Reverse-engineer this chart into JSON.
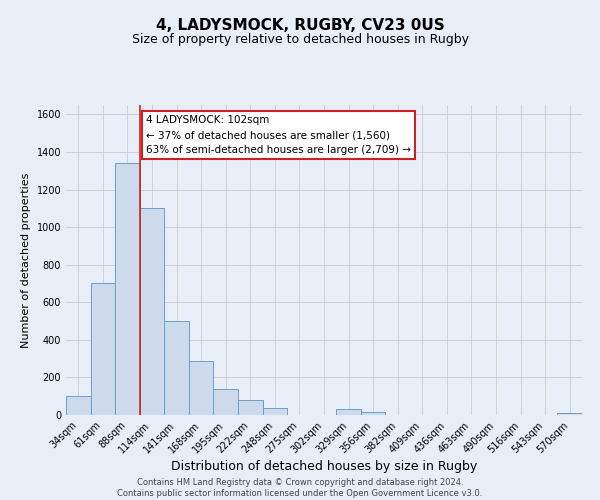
{
  "title": "4, LADYSMOCK, RUGBY, CV23 0US",
  "subtitle": "Size of property relative to detached houses in Rugby",
  "xlabel": "Distribution of detached houses by size in Rugby",
  "ylabel": "Number of detached properties",
  "footer_line1": "Contains HM Land Registry data © Crown copyright and database right 2024.",
  "footer_line2": "Contains public sector information licensed under the Open Government Licence v3.0.",
  "categories": [
    "34sqm",
    "61sqm",
    "88sqm",
    "114sqm",
    "141sqm",
    "168sqm",
    "195sqm",
    "222sqm",
    "248sqm",
    "275sqm",
    "302sqm",
    "329sqm",
    "356sqm",
    "382sqm",
    "409sqm",
    "436sqm",
    "463sqm",
    "490sqm",
    "516sqm",
    "543sqm",
    "570sqm"
  ],
  "bar_values": [
    100,
    700,
    1340,
    1100,
    500,
    285,
    140,
    80,
    35,
    0,
    0,
    30,
    15,
    0,
    0,
    0,
    0,
    0,
    0,
    0,
    10
  ],
  "bar_color": "#cddaec",
  "bar_edge_color": "#6b9ec8",
  "bar_edge_width": 0.7,
  "vline_x_index": 2.5,
  "vline_color": "#cc2222",
  "annotation_title": "4 LADYSMOCK: 102sqm",
  "annotation_line1": "← 37% of detached houses are smaller (1,560)",
  "annotation_line2": "63% of semi-detached houses are larger (2,709) →",
  "annotation_box_color": "#ffffff",
  "annotation_box_edge": "#cc2222",
  "ylim": [
    0,
    1650
  ],
  "yticks": [
    0,
    200,
    400,
    600,
    800,
    1000,
    1200,
    1400,
    1600
  ],
  "grid_color": "#cccccc",
  "bg_color": "#e8eef8",
  "plot_bg_color": "#e8eef8",
  "title_fontsize": 11,
  "subtitle_fontsize": 9,
  "xlabel_fontsize": 9,
  "ylabel_fontsize": 8,
  "tick_fontsize": 7,
  "footer_fontsize": 6,
  "ann_fontsize": 7.5
}
